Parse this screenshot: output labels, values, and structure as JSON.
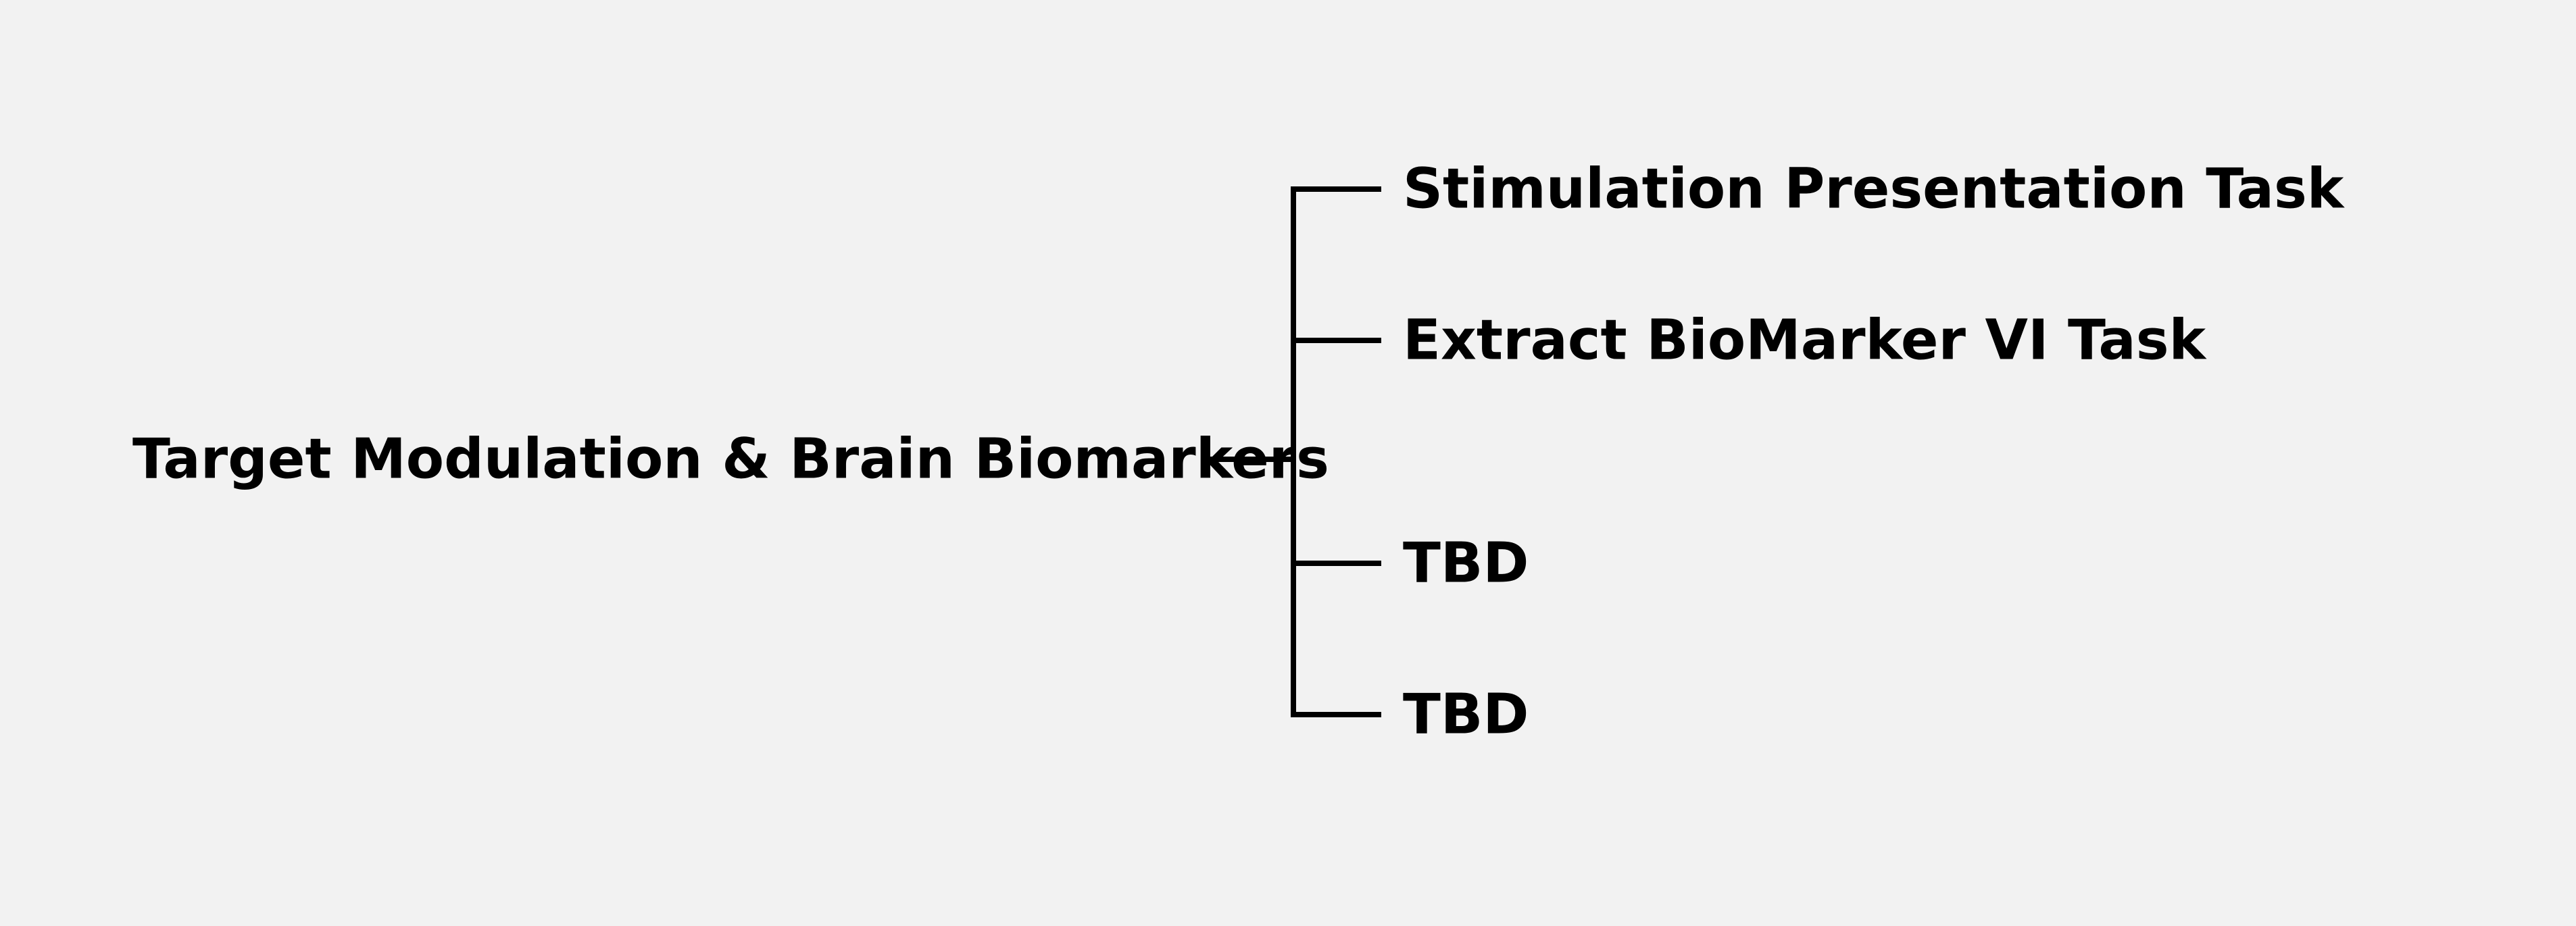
{
  "diagram": {
    "root": {
      "label": "Target Modulation & Brain Biomarkers"
    },
    "children": [
      {
        "label": "Stimulation Presentation Task"
      },
      {
        "label": "Extract BioMarker VI Task"
      },
      {
        "label": "TBD"
      },
      {
        "label": "TBD"
      }
    ]
  }
}
